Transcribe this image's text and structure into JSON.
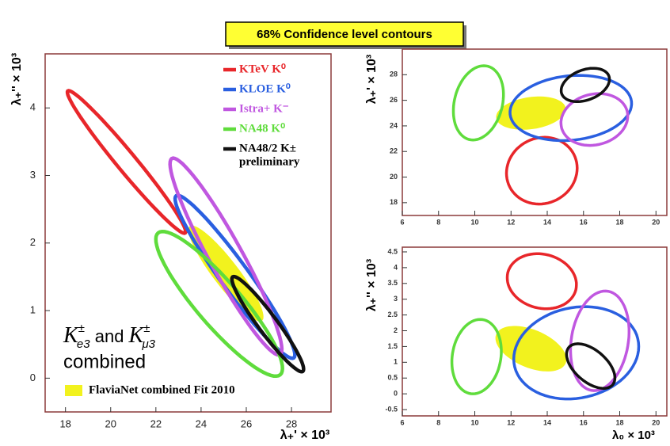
{
  "title": "68% Confidence level contours",
  "chart_data": [
    {
      "type": "ellipse",
      "xlabel": "λ₊' × 10³",
      "ylabel": "λ₊'' × 10³",
      "xlim": [
        17.1,
        29.75
      ],
      "ylim": [
        -0.5,
        4.8
      ],
      "xticks": [
        18,
        20,
        22,
        24,
        26,
        28
      ],
      "yticks": [
        0,
        1,
        2,
        3,
        4
      ],
      "annotation": [
        "K",
        "±",
        "e3",
        " and ",
        "K",
        "±",
        "μ3",
        "combined"
      ],
      "series": [
        {
          "name": "FlaviaNet combined Fit 2010",
          "color": "#f2f21e",
          "fill": true,
          "center": [
            25.1,
            1.55
          ],
          "u": [
            1.6,
            -0.7
          ],
          "v": [
            0.45,
            0.115
          ]
        },
        {
          "name": "KTeV K⁰",
          "color": "#e8262a",
          "center": [
            20.7,
            3.2
          ],
          "u": [
            2.6,
            -1.05
          ],
          "v": [
            0.3,
            0.1
          ]
        },
        {
          "name": "KLOE K⁰",
          "color": "#2a5fe0",
          "center": [
            25.5,
            1.5
          ],
          "u": [
            2.6,
            -1.2
          ],
          "v": [
            0.51,
            0.12
          ]
        },
        {
          "name": "Istra+ K⁻",
          "color": "#c057e0",
          "center": [
            25.1,
            1.8
          ],
          "u": [
            2.4,
            -1.45
          ],
          "v": [
            0.6,
            0.14
          ]
        },
        {
          "name": "NA48 K⁰",
          "color": "#5fdc3c",
          "center": [
            24.8,
            1.1
          ],
          "u": [
            2.7,
            -1.05
          ],
          "v": [
            0.75,
            0.21
          ]
        },
        {
          "name": "NA48/2 K±",
          "note": "preliminary",
          "color": "#111111",
          "center": [
            26.95,
            0.8
          ],
          "u": [
            1.55,
            -0.7
          ],
          "v": [
            0.34,
            0.08
          ]
        }
      ]
    },
    {
      "type": "ellipse",
      "ylabel": "λ₊' × 10³",
      "xlim": [
        6,
        20.6
      ],
      "ylim": [
        17,
        30
      ],
      "xticks": [
        6,
        8,
        10,
        12,
        14,
        16,
        18,
        20
      ],
      "yticks": [
        18,
        20,
        22,
        24,
        26,
        28
      ],
      "series": [
        {
          "color": "#f2f21e",
          "fill": true,
          "center": [
            13.1,
            25.0
          ],
          "u": [
            1.9,
            0.5
          ],
          "v": [
            -0.3,
            1.2
          ]
        },
        {
          "color": "#5fdc3c",
          "center": [
            10.2,
            25.8
          ],
          "u": [
            0.3,
            2.9
          ],
          "v": [
            1.35,
            0
          ]
        },
        {
          "color": "#e8262a",
          "center": [
            13.7,
            20.5
          ],
          "u": [
            1.95,
            0.2
          ],
          "v": [
            0,
            2.6
          ]
        },
        {
          "color": "#2a5fe0",
          "center": [
            15.3,
            25.4
          ],
          "u": [
            3.35,
            0.5
          ],
          "v": [
            -0.2,
            2.5
          ]
        },
        {
          "color": "#c057e0",
          "center": [
            16.6,
            24.5
          ],
          "u": [
            1.8,
            0.7
          ],
          "v": [
            -0.4,
            1.9
          ]
        },
        {
          "color": "#111111",
          "center": [
            16.1,
            27.2
          ],
          "u": [
            1.3,
            0.7
          ],
          "v": [
            -0.3,
            1.1
          ]
        }
      ]
    },
    {
      "type": "ellipse",
      "xlabel": "λ₀ × 10³",
      "ylabel": "λ₊'' × 10³",
      "xlim": [
        6,
        20.6
      ],
      "ylim": [
        -0.7,
        4.65
      ],
      "xticks": [
        6,
        8,
        10,
        12,
        14,
        16,
        18,
        20
      ],
      "yticks": [
        -0.5,
        0,
        0.5,
        1,
        1.5,
        2,
        2.5,
        3,
        3.5,
        4,
        4.5
      ],
      "series": [
        {
          "color": "#f2f21e",
          "fill": true,
          "center": [
            13.1,
            1.43
          ],
          "u": [
            1.95,
            -0.4
          ],
          "v": [
            0.2,
            0.6
          ]
        },
        {
          "color": "#e8262a",
          "center": [
            13.7,
            3.57
          ],
          "u": [
            1.9,
            -0.2
          ],
          "v": [
            0.2,
            0.85
          ]
        },
        {
          "color": "#5fdc3c",
          "center": [
            10.1,
            1.18
          ],
          "u": [
            0.2,
            1.18
          ],
          "v": [
            1.35,
            0
          ]
        },
        {
          "color": "#2a5fe0",
          "center": [
            15.6,
            1.3
          ],
          "u": [
            3.45,
            0.2
          ],
          "v": [
            0,
            1.45
          ]
        },
        {
          "color": "#c057e0",
          "center": [
            16.9,
            1.68
          ],
          "u": [
            0.6,
            1.55
          ],
          "v": [
            1.5,
            -0.3
          ]
        },
        {
          "color": "#111111",
          "center": [
            16.4,
            0.88
          ],
          "u": [
            1.3,
            -0.5
          ],
          "v": [
            0.3,
            0.5
          ]
        }
      ]
    }
  ]
}
